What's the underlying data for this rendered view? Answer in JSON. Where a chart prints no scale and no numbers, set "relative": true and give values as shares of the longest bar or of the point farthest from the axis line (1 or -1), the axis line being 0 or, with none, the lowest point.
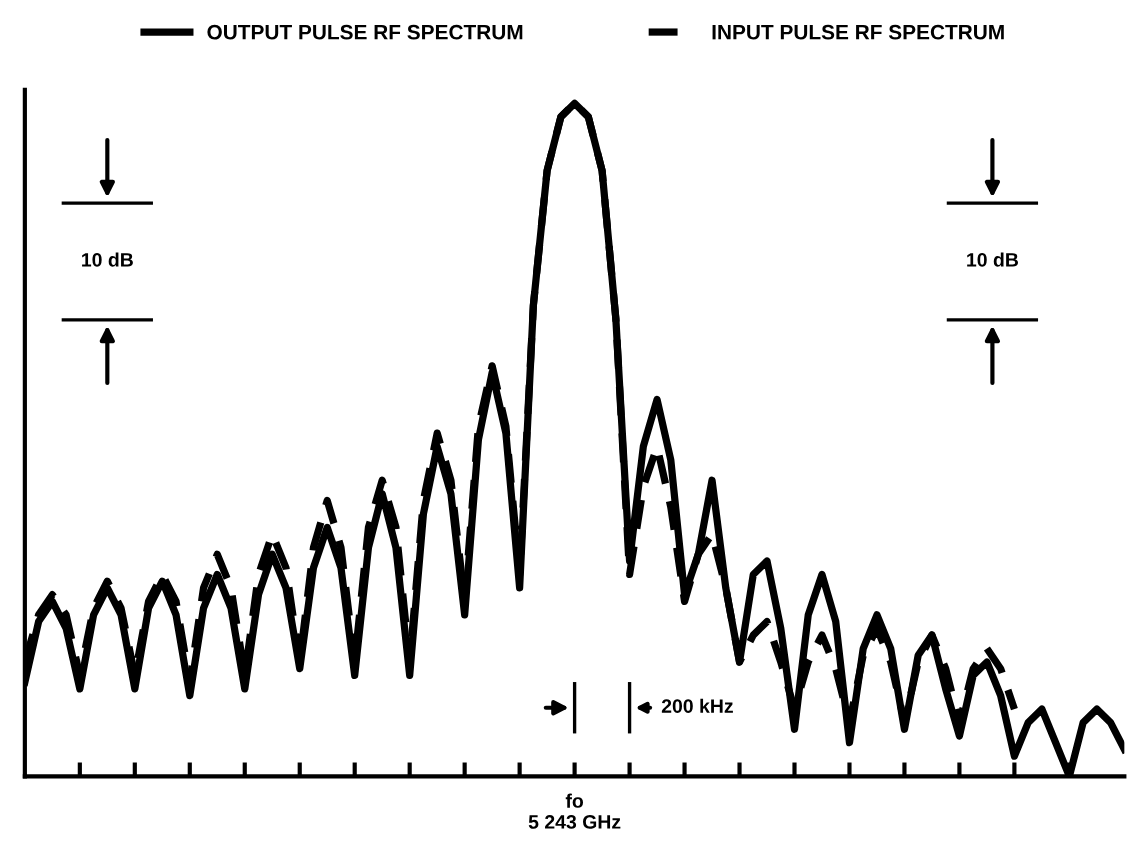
{
  "chart_data": {
    "type": "line",
    "relative": true,
    "legend": "top",
    "marker": "none",
    "categories": [
      null,
      null,
      null,
      null,
      null,
      null,
      null,
      null,
      null,
      null,
      null,
      null,
      null,
      null,
      null,
      null,
      null,
      null,
      null,
      null,
      null,
      null,
      null,
      null,
      null,
      null,
      null,
      null,
      null,
      null,
      null,
      null,
      null,
      null,
      null,
      null,
      null,
      null,
      null,
      null,
      null,
      null,
      null,
      null,
      null,
      null,
      null,
      null,
      null,
      null,
      null,
      null,
      null,
      null,
      null,
      null,
      null,
      null,
      null,
      null,
      null,
      null,
      null,
      null,
      null,
      null,
      null,
      null,
      null,
      null,
      null,
      null,
      null,
      null,
      null,
      null,
      null,
      null,
      null,
      null,
      null
    ],
    "annotations": [
      "10 dB",
      "10 dB",
      "200 kHz",
      "fo\n5 243 GHz"
    ],
    "series": [
      {
        "name": "OUTPUT PULSE RF SPECTRUM",
        "color": "#000000",
        "line_style": "solid",
        "values": [
          0.14,
          0.23,
          0.26,
          0.22,
          0.13,
          0.24,
          0.28,
          0.24,
          0.13,
          0.25,
          0.29,
          0.24,
          0.12,
          0.25,
          0.3,
          0.25,
          0.13,
          0.27,
          0.33,
          0.28,
          0.16,
          0.31,
          0.37,
          0.31,
          0.15,
          0.34,
          0.42,
          0.34,
          0.15,
          0.39,
          0.49,
          0.42,
          0.24,
          0.5,
          0.6,
          0.51,
          0.28,
          0.7,
          0.9,
          0.98,
          1.0,
          0.98,
          0.9,
          0.68,
          0.32,
          0.49,
          0.56,
          0.47,
          0.27,
          0.33,
          0.44,
          0.28,
          0.17,
          0.3,
          0.32,
          0.22,
          0.07,
          0.24,
          0.3,
          0.23,
          0.05,
          0.19,
          0.24,
          0.19,
          0.07,
          0.18,
          0.21,
          0.13,
          0.06,
          0.15,
          0.17,
          0.12,
          0.03,
          0.08,
          0.1,
          0.05,
          0.0,
          0.08,
          0.1,
          0.08,
          0.04
        ]
      },
      {
        "name": "INPUT PULSE RF SPECTRUM",
        "color": "#000000",
        "line_style": "dashed",
        "values": [
          0.17,
          0.24,
          0.27,
          0.24,
          0.15,
          0.25,
          0.29,
          0.25,
          0.15,
          0.26,
          0.3,
          0.26,
          0.14,
          0.28,
          0.33,
          0.28,
          0.15,
          0.3,
          0.36,
          0.31,
          0.17,
          0.34,
          0.41,
          0.34,
          0.17,
          0.37,
          0.44,
          0.37,
          0.17,
          0.41,
          0.51,
          0.44,
          0.26,
          0.52,
          0.61,
          0.52,
          0.3,
          0.7,
          0.9,
          0.98,
          1.0,
          0.98,
          0.9,
          0.68,
          0.3,
          0.43,
          0.49,
          0.4,
          0.26,
          0.33,
          0.36,
          0.28,
          0.17,
          0.21,
          0.23,
          0.17,
          0.1,
          0.17,
          0.21,
          0.16,
          0.08,
          0.18,
          0.22,
          0.17,
          0.08,
          0.17,
          0.21,
          0.16,
          0.08,
          0.16,
          0.19,
          0.16,
          0.1,
          null,
          null,
          null,
          null,
          null,
          null,
          null,
          null
        ]
      }
    ]
  }
}
